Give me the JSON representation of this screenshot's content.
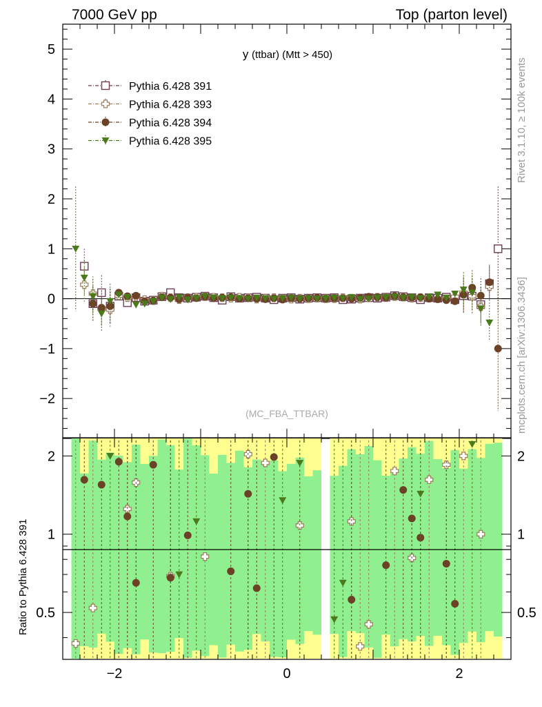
{
  "header": {
    "left": "7000 GeV pp",
    "right": "Top (parton level)"
  },
  "side_labels": {
    "rivet": "Rivet 3.1.10, ≥ 100k events",
    "mcplots": "mcplots.cern.ch [arXiv:1306.3436]"
  },
  "watermark": "(MC_FBA_TTBAR)",
  "chart_data": [
    {
      "type": "scatter",
      "panel": "main",
      "title": "y (ttbar) (Mtt > 450)",
      "title_main": "y",
      "title_sub": "(ttbar) (Mtt > 450)",
      "xlabel": "",
      "ylabel": "",
      "xlim": [
        -2.6,
        2.6
      ],
      "ylim": [
        -2.8,
        5.5
      ],
      "yticks": [
        -2,
        -1,
        0,
        1,
        2,
        3,
        4,
        5
      ],
      "xticks": [
        -2,
        0,
        2
      ],
      "legend_position": "top-left",
      "x": [
        -2.45,
        -2.35,
        -2.25,
        -2.15,
        -2.05,
        -1.95,
        -1.85,
        -1.75,
        -1.65,
        -1.55,
        -1.45,
        -1.35,
        -1.25,
        -1.15,
        -1.05,
        -0.95,
        -0.85,
        -0.75,
        -0.65,
        -0.55,
        -0.45,
        -0.35,
        -0.25,
        -0.15,
        -0.05,
        0.05,
        0.15,
        0.25,
        0.35,
        0.45,
        0.55,
        0.65,
        0.75,
        0.85,
        0.95,
        1.05,
        1.15,
        1.25,
        1.35,
        1.45,
        1.55,
        1.65,
        1.75,
        1.85,
        1.95,
        2.05,
        2.15,
        2.25,
        2.35,
        2.45
      ],
      "series": [
        {
          "name": "Pythia 6.428 391",
          "color": "#6b3d54",
          "marker": "open-square",
          "values": [
            null,
            0.65,
            -0.1,
            0.12,
            -0.15,
            0.05,
            -0.08,
            0.02,
            -0.05,
            -0.03,
            0.04,
            0.12,
            0.02,
            0.01,
            0.03,
            0.05,
            0.02,
            -0.03,
            0.04,
            0.01,
            0.02,
            0.03,
            0.01,
            -0.02,
            0.01,
            0.02,
            -0.01,
            0.01,
            0.02,
            0.01,
            0.02,
            -0.02,
            -0.01,
            0.01,
            0.02,
            0.01,
            0.03,
            0.06,
            0.04,
            0.02,
            -0.02,
            0.02,
            0.01,
            0.03,
            -0.02,
            0.06,
            0.05,
            -0.12,
            0.3,
            1.0
          ]
        },
        {
          "name": "Pythia 6.428 393",
          "color": "#9a7a5a",
          "marker": "open-cross",
          "values": [
            null,
            0.28,
            0.1,
            -0.2,
            -0.22,
            0.06,
            0.02,
            0.04,
            -0.02,
            -0.04,
            0.05,
            0.02,
            -0.02,
            0.02,
            0.03,
            0.04,
            0.03,
            0.02,
            0.01,
            0.03,
            0.02,
            -0.01,
            0.01,
            0.02,
            0.0,
            -0.01,
            0.01,
            0.0,
            0.01,
            0.0,
            0.0,
            0.02,
            0.01,
            -0.01,
            0.02,
            0.03,
            0.02,
            0.04,
            0.03,
            0.01,
            0.02,
            0.01,
            0.0,
            -0.01,
            0.04,
            0.12,
            0.05,
            -0.16,
            0.24,
            null
          ]
        },
        {
          "name": "Pythia 6.428 394",
          "color": "#6b4226",
          "marker": "filled-circle",
          "values": [
            null,
            null,
            -0.1,
            -0.18,
            -0.15,
            0.12,
            0.05,
            0.06,
            -0.05,
            -0.04,
            0.03,
            0.02,
            -0.01,
            0.02,
            0.01,
            0.04,
            0.01,
            0.02,
            0.03,
            0.0,
            0.01,
            0.0,
            -0.01,
            0.01,
            -0.02,
            0.01,
            0.0,
            0.01,
            0.02,
            0.0,
            0.01,
            0.01,
            0.0,
            0.02,
            0.04,
            0.03,
            0.02,
            0.05,
            0.03,
            0.02,
            0.03,
            0.0,
            -0.01,
            -0.03,
            -0.05,
            0.08,
            0.22,
            0.06,
            0.33,
            -1.0
          ]
        },
        {
          "name": "Pythia 6.428 395",
          "color": "#4a7a1a",
          "marker": "filled-triangle-down",
          "values": [
            1.0,
            0.42,
            0.05,
            -0.3,
            -0.05,
            0.08,
            0.03,
            -0.12,
            -0.1,
            -0.05,
            0.02,
            -0.01,
            0.03,
            -0.02,
            0.01,
            0.05,
            0.02,
            0.01,
            0.02,
            0.01,
            0.0,
            0.02,
            0.01,
            0.0,
            0.01,
            0.02,
            0.0,
            0.01,
            0.0,
            0.01,
            0.02,
            0.01,
            0.03,
            -0.01,
            0.0,
            0.02,
            0.03,
            0.04,
            0.02,
            0.03,
            0.01,
            0.04,
            0.08,
            0.02,
            0.1,
            0.18,
            0.12,
            -0.2,
            -0.48,
            null
          ]
        }
      ]
    },
    {
      "type": "scatter",
      "panel": "ratio",
      "ylabel": "Ratio to Pythia 6.428 391",
      "xlim": [
        -2.6,
        2.6
      ],
      "ylim": [
        0.33,
        2.35
      ],
      "yticks": [
        0.5,
        1,
        2
      ],
      "ytick_labels": [
        "0.5",
        "1",
        "2"
      ],
      "xticks": [
        -2,
        0,
        2
      ],
      "reference_line": 1,
      "band_colors": {
        "inner": "#90f090",
        "outer": "#ffff90"
      },
      "x": [
        -2.45,
        -2.35,
        -2.25,
        -2.15,
        -2.05,
        -1.95,
        -1.85,
        -1.75,
        -1.65,
        -1.55,
        -1.45,
        -1.35,
        -1.25,
        -1.15,
        -1.05,
        -0.95,
        -0.85,
        -0.75,
        -0.65,
        -0.55,
        -0.45,
        -0.35,
        -0.25,
        -0.15,
        -0.05,
        0.05,
        0.15,
        0.25,
        0.35,
        0.45,
        0.55,
        0.65,
        0.75,
        0.85,
        0.95,
        1.05,
        1.15,
        1.25,
        1.35,
        1.45,
        1.55,
        1.65,
        1.75,
        1.85,
        1.95,
        2.05,
        2.15,
        2.25,
        2.35,
        2.45
      ],
      "series": [
        {
          "name": "Pythia 6.428 393",
          "color": "#9a7a5a",
          "marker": "open-cross",
          "values": [
            0.38,
            null,
            0.52,
            null,
            null,
            null,
            1.25,
            1.58,
            null,
            null,
            null,
            0.69,
            null,
            null,
            null,
            0.82,
            null,
            null,
            null,
            null,
            2.03,
            null,
            1.88,
            null,
            null,
            null,
            1.08,
            null,
            null,
            null,
            null,
            null,
            1.12,
            0.37,
            0.45,
            null,
            null,
            1.75,
            null,
            0.81,
            null,
            1.62,
            null,
            1.85,
            null,
            2.0,
            null,
            1.0,
            null,
            null
          ]
        },
        {
          "name": "Pythia 6.428 394",
          "color": "#6b4226",
          "marker": "filled-circle",
          "values": [
            null,
            1.62,
            null,
            1.55,
            null,
            1.9,
            1.17,
            0.65,
            null,
            1.85,
            null,
            0.68,
            null,
            0.99,
            null,
            null,
            null,
            null,
            0.72,
            null,
            1.43,
            0.62,
            null,
            1.98,
            null,
            null,
            null,
            null,
            null,
            null,
            null,
            null,
            0.56,
            null,
            null,
            null,
            0.76,
            null,
            1.48,
            1.15,
            0.97,
            null,
            null,
            0.77,
            0.54,
            null,
            null,
            null,
            null,
            null
          ]
        },
        {
          "name": "Pythia 6.428 395",
          "color": "#4a7a1a",
          "marker": "filled-triangle-down",
          "values": [
            null,
            null,
            null,
            null,
            2.0,
            null,
            null,
            null,
            null,
            null,
            null,
            null,
            0.7,
            null,
            1.12,
            null,
            null,
            null,
            null,
            null,
            null,
            null,
            null,
            null,
            1.35,
            null,
            1.88,
            null,
            null,
            null,
            0.47,
            0.65,
            null,
            null,
            null,
            null,
            null,
            null,
            null,
            null,
            1.43,
            null,
            null,
            null,
            null,
            null,
            2.22,
            null,
            null,
            null
          ]
        }
      ]
    }
  ]
}
